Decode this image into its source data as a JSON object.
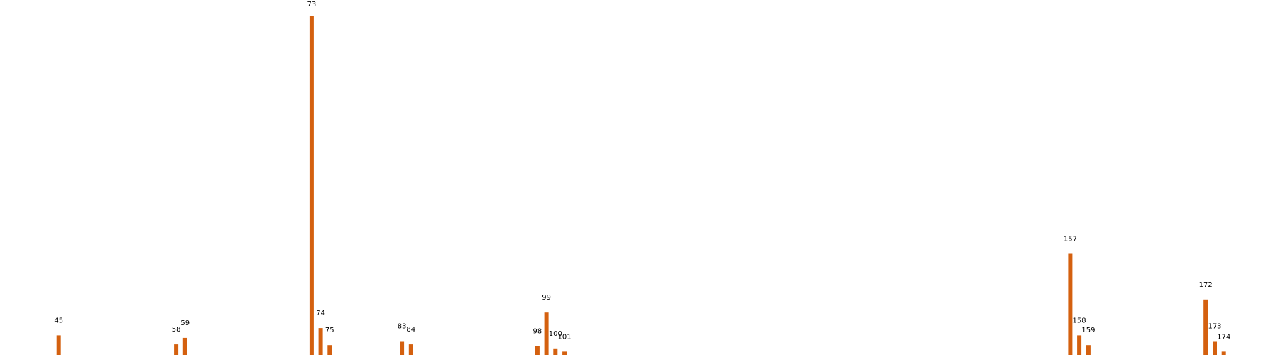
{
  "chart_data": {
    "type": "bar",
    "colors": {
      "bar": "#d4600f"
    },
    "grid": false,
    "legend": "none",
    "x": [
      45,
      58,
      59,
      73,
      74,
      75,
      83,
      84,
      98,
      99,
      100,
      101,
      157,
      158,
      159,
      172,
      173,
      174
    ],
    "labels": [
      "45",
      "58",
      "59",
      "73",
      "74",
      "75",
      "83",
      "84",
      "98",
      "99",
      "100",
      "101",
      "157",
      "158",
      "159",
      "172",
      "173",
      "174"
    ],
    "values": [
      24,
      13,
      21,
      415,
      33,
      12,
      17,
      13,
      11,
      52,
      8,
      4,
      124,
      24,
      12,
      68,
      17,
      4
    ],
    "xlim": [
      38.5,
      180
    ],
    "ylim": [
      0,
      415
    ]
  }
}
